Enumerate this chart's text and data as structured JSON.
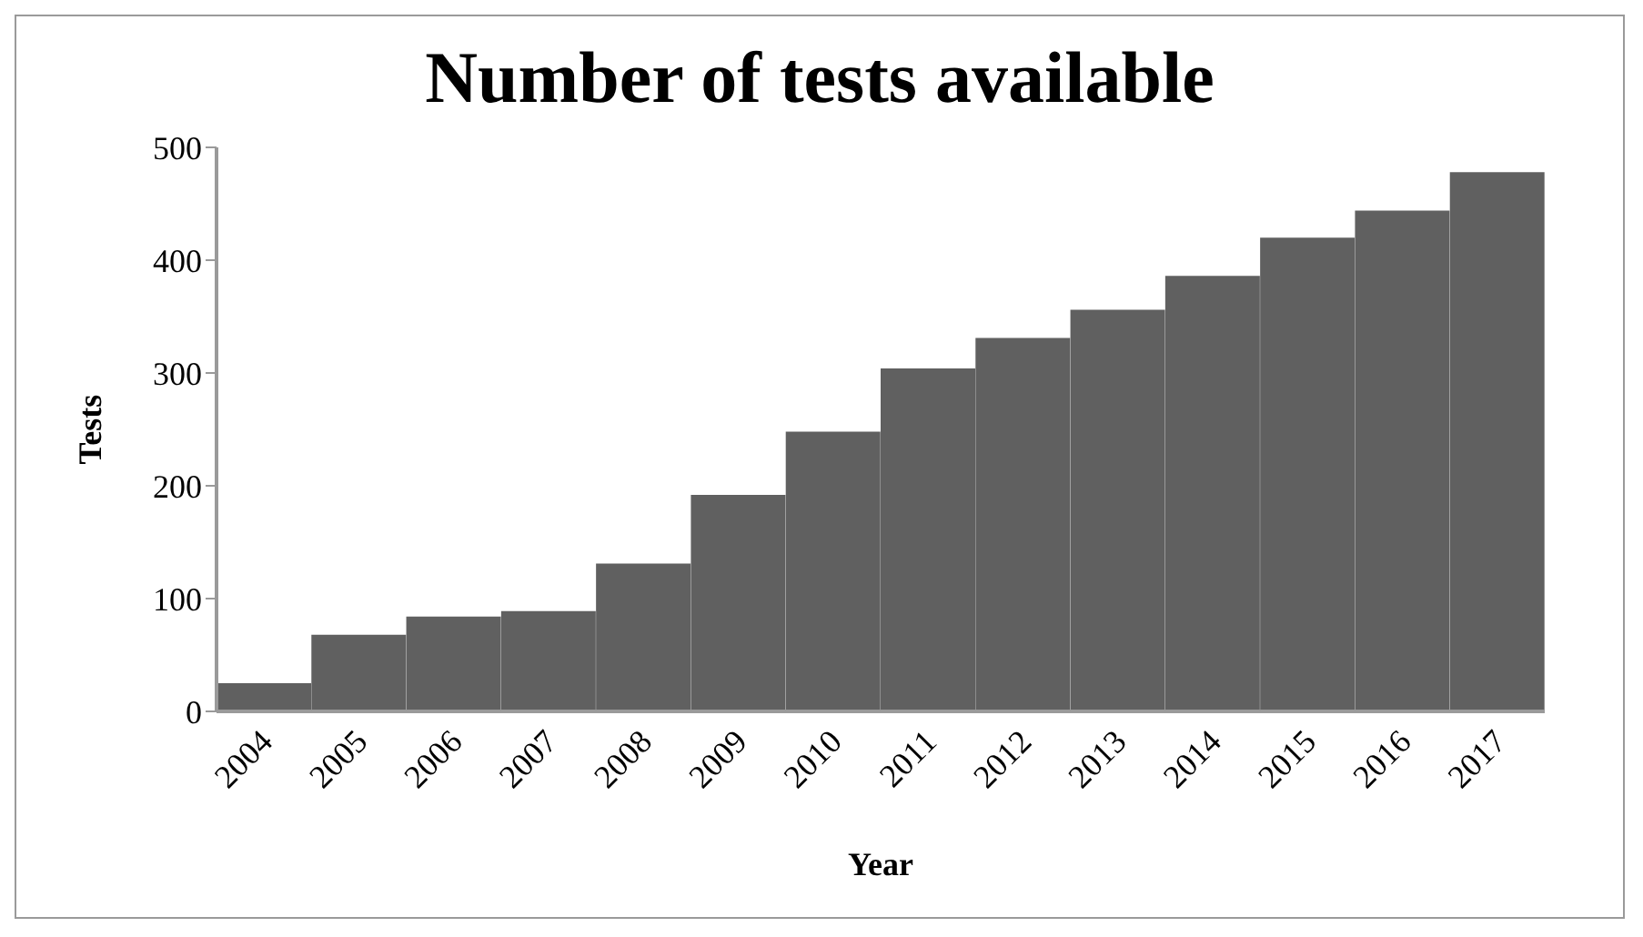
{
  "chart_data": {
    "type": "bar",
    "title": "Number of tests available",
    "xlabel": "Year",
    "ylabel": "Tests",
    "categories": [
      "2004",
      "2005",
      "2006",
      "2007",
      "2008",
      "2009",
      "2010",
      "2011",
      "2012",
      "2013",
      "2014",
      "2015",
      "2016",
      "2017"
    ],
    "values": [
      25,
      68,
      84,
      89,
      131,
      192,
      248,
      304,
      331,
      356,
      386,
      420,
      444,
      478
    ],
    "color": "#606060",
    "ylim": [
      0,
      500
    ],
    "yticks": [
      0,
      100,
      200,
      300,
      400,
      500
    ],
    "grid": false
  }
}
